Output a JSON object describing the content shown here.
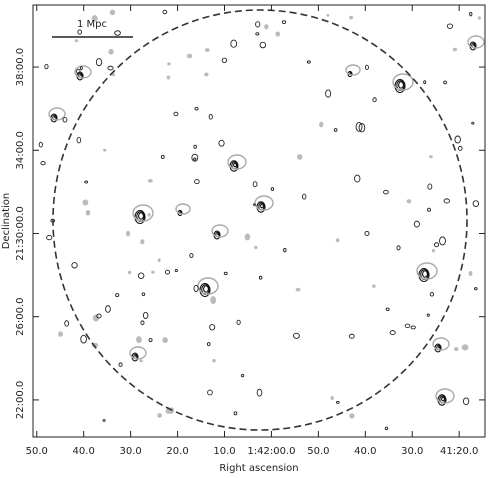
{
  "chart_data": {
    "type": "contour",
    "annotation": "1 Mpc",
    "x_label": "Right ascension",
    "y_label": "Declination",
    "xlim": [
      6170.8,
      6074.5
    ],
    "ylim": [
      76813,
      78059
    ],
    "xticks": [
      {
        "value": 6170,
        "label": "50.0"
      },
      {
        "value": 6160,
        "label": "40.0"
      },
      {
        "value": 6150,
        "label": "30.0"
      },
      {
        "value": 6140,
        "label": "20.0"
      },
      {
        "value": 6130,
        "label": "10.0"
      },
      {
        "value": 6120,
        "label": "1:42:00.0"
      },
      {
        "value": 6110,
        "label": "50.0"
      },
      {
        "value": 6100,
        "label": "40.0"
      },
      {
        "value": 6090,
        "label": "30.0"
      },
      {
        "value": 6080,
        "label": "41:20.0"
      }
    ],
    "yticks": [
      {
        "value": 76920,
        "label": "22:00.0"
      },
      {
        "value": 77160,
        "label": "26:00.0"
      },
      {
        "value": 77400,
        "label": "21:30:00.0"
      },
      {
        "value": 77640,
        "label": "34:00.0"
      },
      {
        "value": 77880,
        "label": "38:00.0"
      }
    ]
  }
}
